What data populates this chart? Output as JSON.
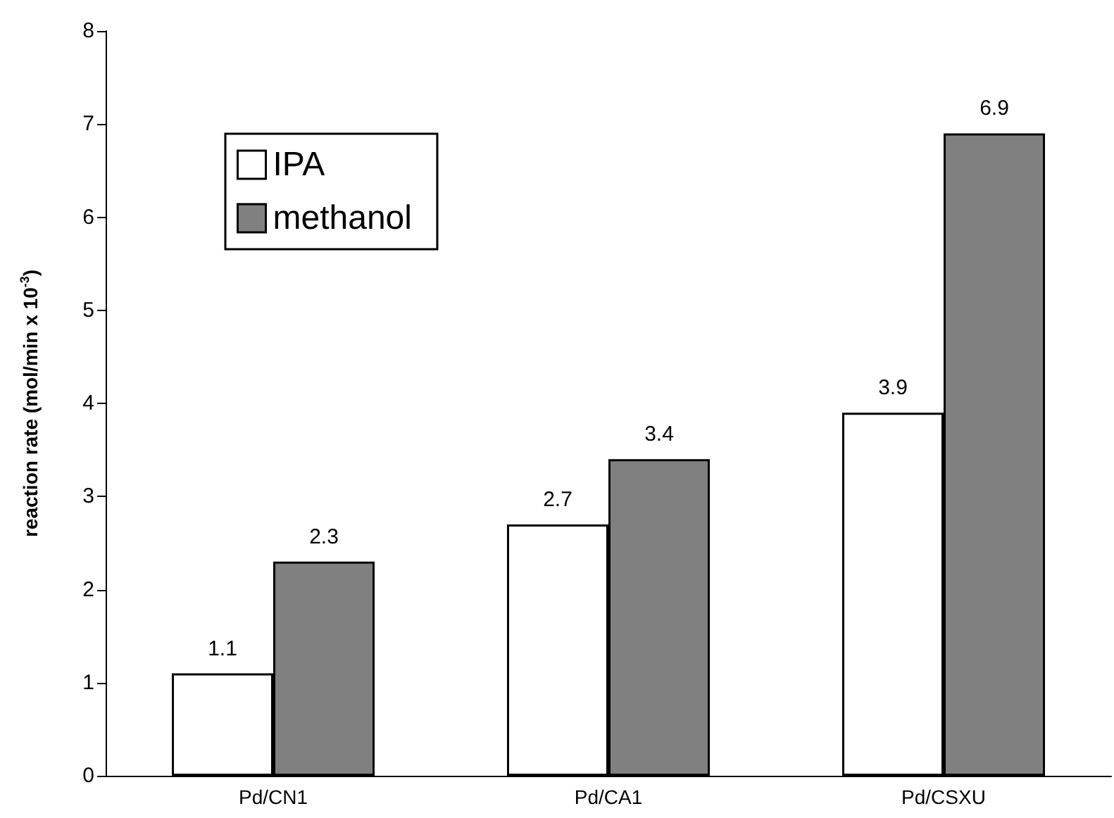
{
  "chart_data": {
    "type": "bar",
    "ylabel": "reaction rate (mol/min x 10$^{-3}$)",
    "categories": [
      "Pd/CN1",
      "Pd/CA1",
      "Pd/CSXU"
    ],
    "series": [
      {
        "name": "IPA",
        "color": "#ffffff",
        "values": [
          1.1,
          2.7,
          3.9
        ]
      },
      {
        "name": "methanol",
        "color": "#808080",
        "values": [
          2.3,
          3.4,
          6.9
        ]
      }
    ],
    "ylim": [
      0,
      8
    ],
    "yticks": [
      0,
      1,
      2,
      3,
      4,
      5,
      6,
      7,
      8
    ],
    "grid": false,
    "legend": "top left",
    "data_labels": true
  }
}
